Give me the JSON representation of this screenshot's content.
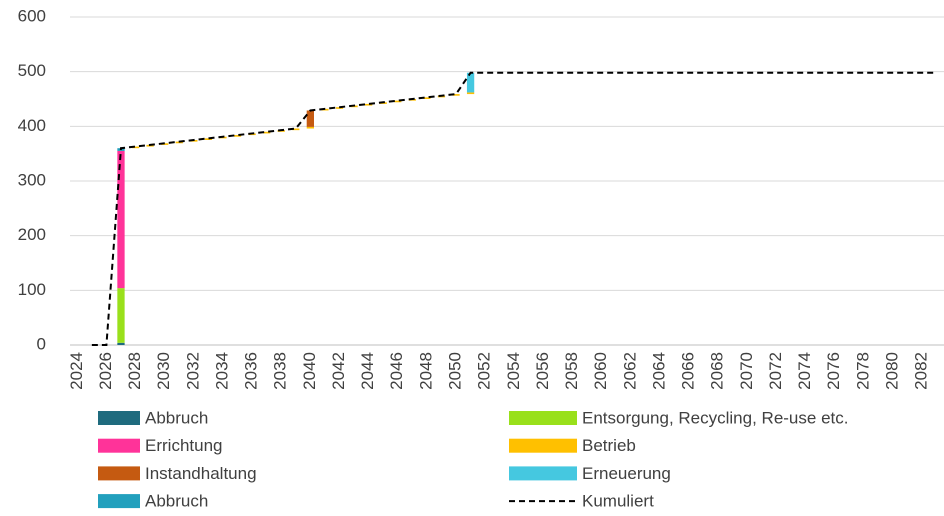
{
  "chart_data": {
    "type": "bar",
    "categories": [
      "2024",
      null,
      "2026",
      null,
      "2028",
      null,
      "2030",
      null,
      "2032",
      null,
      "2034",
      null,
      "2036",
      null,
      "2038",
      null,
      "2040",
      null,
      "2042",
      null,
      "2044",
      null,
      "2046",
      null,
      "2048",
      null,
      "2050",
      null,
      "2052",
      null,
      "2054",
      null,
      "2056",
      null,
      "2058",
      null,
      "2060",
      null,
      "2062",
      null,
      "2064",
      null,
      "2066",
      null,
      "2068",
      null,
      "2070",
      null,
      "2072",
      null,
      "2074",
      null,
      "2076",
      null,
      "2078",
      null,
      "2080",
      null,
      "2082",
      null
    ],
    "series": [
      {
        "name": "Abbruch",
        "color": "#1f6b7e",
        "values": [
          0,
          0,
          0,
          4,
          0,
          0,
          0,
          0,
          0,
          0,
          0,
          0,
          0,
          0,
          0,
          0,
          0,
          0,
          0,
          0,
          0,
          0,
          0,
          0,
          0,
          0,
          0,
          0,
          0,
          0,
          0,
          0,
          0,
          0,
          0,
          0,
          0,
          0,
          0,
          0,
          0,
          0,
          0,
          0,
          0,
          0,
          0,
          0,
          0,
          0,
          0,
          0,
          0,
          0,
          0,
          0,
          0,
          0,
          0,
          0
        ]
      },
      {
        "name": "Entsorgung, Recycling, Re-use etc.",
        "color": "#99e01b",
        "values": [
          0,
          0,
          0,
          100,
          0,
          0,
          0,
          0,
          0,
          0,
          0,
          0,
          0,
          0,
          0,
          0,
          0,
          0,
          0,
          0,
          0,
          0,
          0,
          0,
          0,
          0,
          0,
          0,
          0,
          0,
          0,
          0,
          0,
          0,
          0,
          0,
          0,
          0,
          0,
          0,
          0,
          0,
          0,
          0,
          0,
          0,
          0,
          0,
          0,
          0,
          0,
          0,
          0,
          0,
          0,
          0,
          0,
          0,
          0,
          0
        ]
      },
      {
        "name": "Errichtung",
        "color": "#ff3399",
        "values": [
          0,
          0,
          0,
          251,
          0,
          0,
          0,
          0,
          0,
          0,
          0,
          0,
          0,
          0,
          0,
          0,
          0,
          0,
          0,
          0,
          0,
          0,
          0,
          0,
          0,
          0,
          0,
          0,
          0,
          0,
          0,
          0,
          0,
          0,
          0,
          0,
          0,
          0,
          0,
          0,
          0,
          0,
          0,
          0,
          0,
          0,
          0,
          0,
          0,
          0,
          0,
          0,
          0,
          0,
          0,
          0,
          0,
          0,
          0,
          0
        ]
      },
      {
        "name": "Betrieb",
        "color": "#ffc000",
        "values": [
          0,
          0,
          0,
          0,
          3,
          3,
          3,
          3,
          3,
          3,
          3,
          3,
          3,
          3,
          3,
          3,
          3,
          3,
          3,
          3,
          3,
          3,
          3,
          3,
          3,
          3,
          3,
          3,
          0,
          0,
          0,
          0,
          0,
          0,
          0,
          0,
          0,
          0,
          0,
          0,
          0,
          0,
          0,
          0,
          0,
          0,
          0,
          0,
          0,
          0,
          0,
          0,
          0,
          0,
          0,
          0,
          0,
          0,
          0,
          0
        ]
      },
      {
        "name": "Instandhaltung",
        "color": "#c55a11",
        "values": [
          0,
          0,
          0,
          0,
          0,
          0,
          0,
          0,
          0,
          0,
          0,
          0,
          0,
          0,
          0,
          0,
          30,
          0,
          0,
          0,
          0,
          0,
          0,
          0,
          0,
          0,
          0,
          0,
          0,
          0,
          0,
          0,
          0,
          0,
          0,
          0,
          0,
          0,
          0,
          0,
          0,
          0,
          0,
          0,
          0,
          0,
          0,
          0,
          0,
          0,
          0,
          0,
          0,
          0,
          0,
          0,
          0,
          0,
          0,
          0
        ]
      },
      {
        "name": "Erneuerung",
        "color": "#45c8e0",
        "values": [
          0,
          0,
          0,
          0,
          0,
          0,
          0,
          0,
          0,
          0,
          0,
          0,
          0,
          0,
          0,
          0,
          0,
          0,
          0,
          0,
          0,
          0,
          0,
          0,
          0,
          0,
          0,
          36,
          0,
          0,
          0,
          0,
          0,
          0,
          0,
          0,
          0,
          0,
          0,
          0,
          0,
          0,
          0,
          0,
          0,
          0,
          0,
          0,
          0,
          0,
          0,
          0,
          0,
          0,
          0,
          0,
          0,
          0,
          0,
          0
        ]
      },
      {
        "name": "Abbruch",
        "color": "#22a0bd",
        "values": [
          0,
          0,
          0,
          5,
          0,
          0,
          0,
          0,
          0,
          0,
          0,
          0,
          0,
          0,
          0,
          0,
          0,
          0,
          0,
          0,
          0,
          0,
          0,
          0,
          0,
          0,
          0,
          0,
          0,
          0,
          0,
          0,
          0,
          0,
          0,
          0,
          0,
          0,
          0,
          0,
          0,
          0,
          0,
          0,
          0,
          0,
          0,
          0,
          0,
          0,
          0,
          0,
          0,
          0,
          0,
          0,
          0,
          0,
          0,
          0
        ]
      },
      {
        "name": "Kumuliert",
        "color": "#000000",
        "type": "line",
        "dashed": true,
        "values": [
          null,
          0,
          0,
          360,
          363,
          366,
          369,
          372,
          375,
          378,
          381,
          384,
          387,
          390,
          393,
          396,
          429,
          432,
          435,
          438,
          441,
          444,
          447,
          450,
          453,
          456,
          459,
          498,
          498,
          498,
          498,
          498,
          498,
          498,
          498,
          498,
          498,
          498,
          498,
          498,
          498,
          498,
          498,
          498,
          498,
          498,
          498,
          498,
          498,
          498,
          498,
          498,
          498,
          498,
          498,
          498,
          498,
          498,
          498,
          498
        ]
      }
    ],
    "ylim": [
      0,
      600
    ],
    "yticks": [
      0,
      100,
      200,
      300,
      400,
      500,
      600
    ],
    "grid": true
  }
}
